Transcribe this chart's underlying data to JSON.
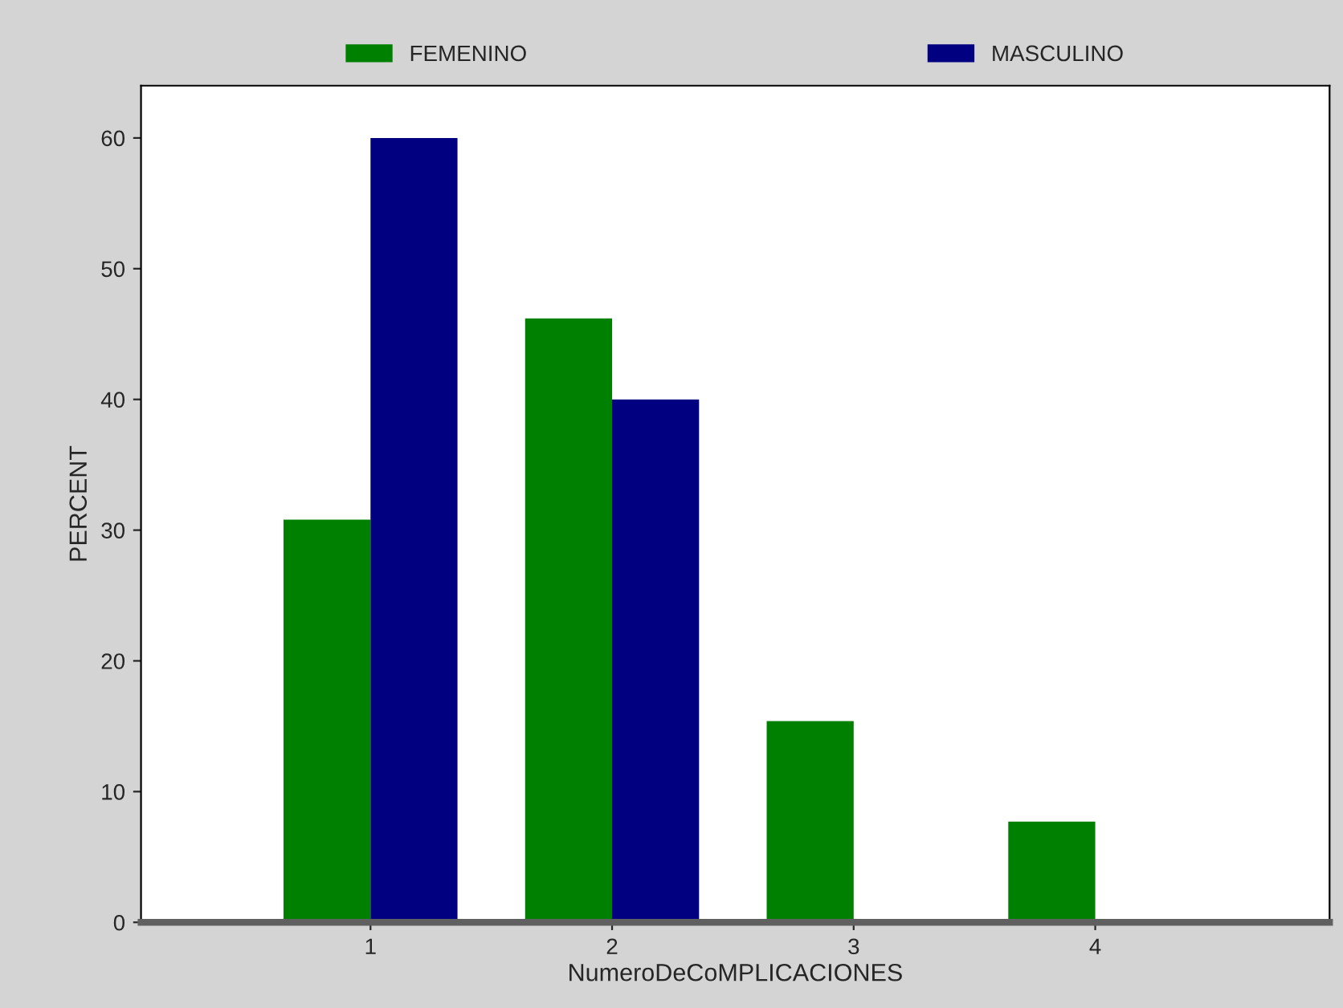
{
  "chart_data": {
    "type": "bar",
    "xlabel": "NumeroDeCoMPLICACIONES",
    "ylabel": "PERCENT",
    "categories": [
      "1",
      "2",
      "3",
      "4"
    ],
    "series": [
      {
        "name": "FEMENINO",
        "color": "#008000",
        "values": [
          30.8,
          46.2,
          15.4,
          7.7
        ]
      },
      {
        "name": "MASCULINO",
        "color": "#000080",
        "values": [
          60,
          40,
          null,
          null
        ]
      }
    ],
    "ylim": [
      0,
      64
    ],
    "yticks": [
      0,
      10,
      20,
      30,
      40,
      50,
      60
    ],
    "grid": false,
    "legend": "top"
  }
}
